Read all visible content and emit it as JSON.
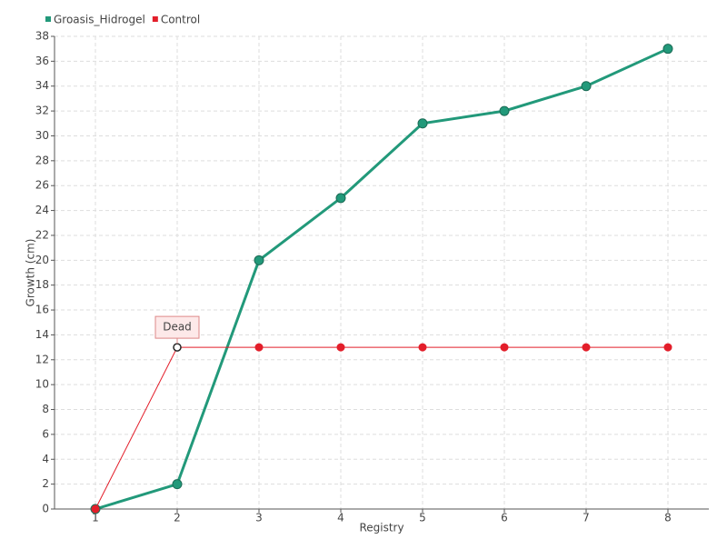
{
  "chart_data": {
    "type": "line",
    "x_label": "Registry",
    "y_label": "Growth (cm)",
    "x": [
      1,
      2,
      3,
      4,
      5,
      6,
      7,
      8
    ],
    "xlim": [
      0.5,
      8.5
    ],
    "xticks": [
      1,
      2,
      3,
      4,
      5,
      6,
      7,
      8
    ],
    "ylim": [
      0,
      38
    ],
    "yticks": [
      0,
      2,
      4,
      6,
      8,
      10,
      12,
      14,
      16,
      18,
      20,
      22,
      24,
      26,
      28,
      30,
      32,
      34,
      36,
      38
    ],
    "grid": true,
    "legend": "top-left",
    "series": [
      {
        "name": "Groasis_Hidrogel",
        "color": "#22997a",
        "values": [
          0,
          2,
          20,
          25,
          31,
          32,
          34,
          37
        ]
      },
      {
        "name": "Control",
        "color": "#e31e2a",
        "values": [
          0,
          13,
          13,
          13,
          13,
          13,
          13,
          13
        ]
      }
    ],
    "annotations": [
      {
        "text": "Dead",
        "x": 2,
        "y": 13
      }
    ]
  }
}
